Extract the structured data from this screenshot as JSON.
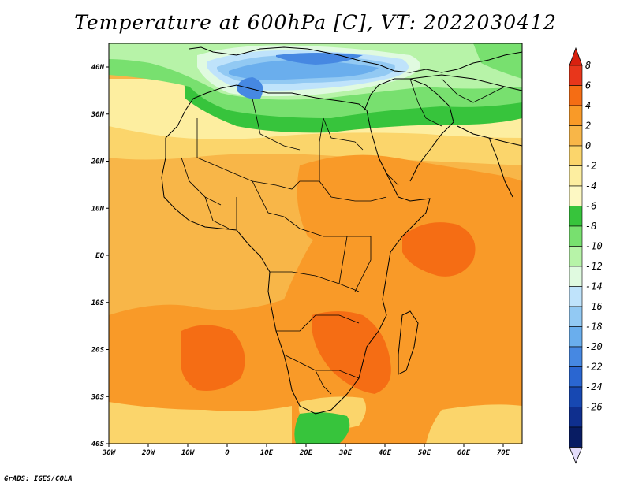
{
  "title": "Temperature at 600hPa [C], VT: 2022030412",
  "footer": "GrADS: IGES/COLA",
  "axes": {
    "lon_labels": [
      "30W",
      "20W",
      "10W",
      "0",
      "10E",
      "20E",
      "30E",
      "40E",
      "50E",
      "60E",
      "70E"
    ],
    "lat_labels": [
      "40N",
      "30N",
      "20N",
      "10N",
      "EQ",
      "10S",
      "20S",
      "30S",
      "40S"
    ]
  },
  "colorbar": {
    "levels": [
      "8",
      "6",
      "4",
      "2",
      "0",
      "-2",
      "-4",
      "-6",
      "-8",
      "-10",
      "-12",
      "-14",
      "-16",
      "-18",
      "-20",
      "-22",
      "-24",
      "-26"
    ],
    "colors": [
      "#e8361b",
      "#f56d14",
      "#f99a28",
      "#f8b648",
      "#fbd56b",
      "#fdeea0",
      "#fdf8c3",
      "#37c43c",
      "#78e06f",
      "#b7f3a8",
      "#e0fae0",
      "#bfe3fb",
      "#92c9f3",
      "#6aaeed",
      "#4688e2",
      "#2a66d1",
      "#1748b2",
      "#0f2f8e",
      "#081c63"
    ],
    "top_color": "#d8210f",
    "bottom_color": "#e4ddfa"
  }
}
